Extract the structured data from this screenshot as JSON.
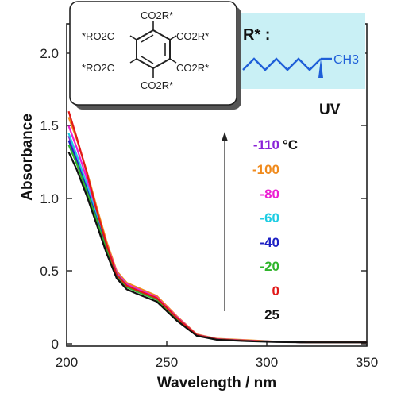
{
  "chart_data": {
    "type": "line",
    "xlabel": "Wavelength / nm",
    "ylabel": "Absorbance",
    "xlim": [
      200,
      350
    ],
    "ylim": [
      0,
      2.2
    ],
    "x_ticks": [
      200,
      250,
      300,
      350
    ],
    "y_ticks": [
      0,
      0.5,
      1.0,
      1.5,
      2.0
    ],
    "y_tick_labels": [
      "0",
      "0.5",
      "1.0",
      "1.5",
      "2.0"
    ],
    "annotation": "UV",
    "legend_unit": "°C",
    "legend_placement": "right",
    "series": [
      {
        "name": "-110",
        "color": "#8b22d8",
        "values": [
          1.43,
          1.28,
          1.08,
          0.87,
          0.66,
          0.48,
          0.4,
          0.37,
          0.31,
          0.18,
          0.06,
          0.03,
          0.02,
          0.015,
          0.01,
          0.01
        ]
      },
      {
        "name": "-100",
        "color": "#f08a1c",
        "values": [
          1.56,
          1.41,
          1.19,
          0.94,
          0.7,
          0.5,
          0.42,
          0.39,
          0.33,
          0.19,
          0.065,
          0.035,
          0.025,
          0.015,
          0.01,
          0.01
        ]
      },
      {
        "name": "-80",
        "color": "#ec1fd3",
        "values": [
          1.5,
          1.35,
          1.14,
          0.91,
          0.68,
          0.49,
          0.41,
          0.38,
          0.32,
          0.185,
          0.062,
          0.032,
          0.022,
          0.015,
          0.01,
          0.01
        ]
      },
      {
        "name": "-60",
        "color": "#1ecde3",
        "values": [
          1.45,
          1.3,
          1.1,
          0.88,
          0.665,
          0.48,
          0.4,
          0.37,
          0.31,
          0.18,
          0.06,
          0.03,
          0.02,
          0.015,
          0.01,
          0.01
        ]
      },
      {
        "name": "-40",
        "color": "#1d20c4",
        "values": [
          1.4,
          1.26,
          1.07,
          0.86,
          0.655,
          0.47,
          0.395,
          0.365,
          0.31,
          0.175,
          0.06,
          0.03,
          0.02,
          0.015,
          0.01,
          0.01
        ]
      },
      {
        "name": "-20",
        "color": "#2fb52b",
        "values": [
          1.37,
          1.24,
          1.05,
          0.85,
          0.645,
          0.465,
          0.39,
          0.36,
          0.305,
          0.17,
          0.058,
          0.03,
          0.02,
          0.015,
          0.01,
          0.01
        ]
      },
      {
        "name": "0",
        "color": "#e11818",
        "values": [
          1.6,
          1.42,
          1.18,
          0.92,
          0.68,
          0.475,
          0.4,
          0.37,
          0.315,
          0.18,
          0.06,
          0.03,
          0.02,
          0.015,
          0.01,
          0.01
        ]
      },
      {
        "name": "25",
        "color": "#111111",
        "values": [
          1.32,
          1.2,
          1.02,
          0.82,
          0.62,
          0.45,
          0.375,
          0.345,
          0.29,
          0.16,
          0.055,
          0.028,
          0.018,
          0.012,
          0.01,
          0.01
        ]
      }
    ],
    "x": [
      201,
      205,
      210,
      215,
      220,
      225,
      230,
      235,
      245,
      255,
      265,
      275,
      290,
      305,
      320,
      350
    ]
  },
  "inset": {
    "rstar_label": "R* :",
    "methyl_label": "CH3",
    "structure_texts": [
      "CO2R*",
      "*RO2C",
      "CO2R*",
      "*RO2C",
      "CO2R*",
      "CO2R*"
    ]
  }
}
